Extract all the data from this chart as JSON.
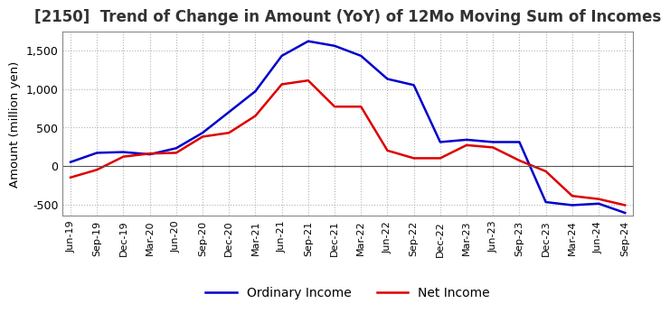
{
  "title": "[2150]  Trend of Change in Amount (YoY) of 12Mo Moving Sum of Incomes",
  "ylabel": "Amount (million yen)",
  "ylim": [
    -650,
    1750
  ],
  "yticks": [
    -500,
    0,
    500,
    1000,
    1500
  ],
  "background_color": "#ffffff",
  "grid_color": "#aaaaaa",
  "ordinary_income_color": "#0000cc",
  "net_income_color": "#dd0000",
  "x_labels": [
    "Jun-19",
    "Sep-19",
    "Dec-19",
    "Mar-20",
    "Jun-20",
    "Sep-20",
    "Dec-20",
    "Mar-21",
    "Jun-21",
    "Sep-21",
    "Dec-21",
    "Mar-22",
    "Jun-22",
    "Sep-22",
    "Dec-22",
    "Mar-23",
    "Jun-23",
    "Sep-23",
    "Dec-23",
    "Mar-24",
    "Jun-24",
    "Sep-24"
  ],
  "ordinary_income": [
    50,
    170,
    180,
    150,
    230,
    430,
    700,
    970,
    1430,
    1620,
    1560,
    1430,
    1130,
    1050,
    310,
    340,
    310,
    310,
    -470,
    -510,
    -490,
    -610
  ],
  "net_income": [
    -150,
    -50,
    120,
    160,
    170,
    380,
    430,
    650,
    1060,
    1110,
    770,
    770,
    200,
    100,
    100,
    270,
    240,
    70,
    -70,
    -390,
    -430,
    -510
  ]
}
